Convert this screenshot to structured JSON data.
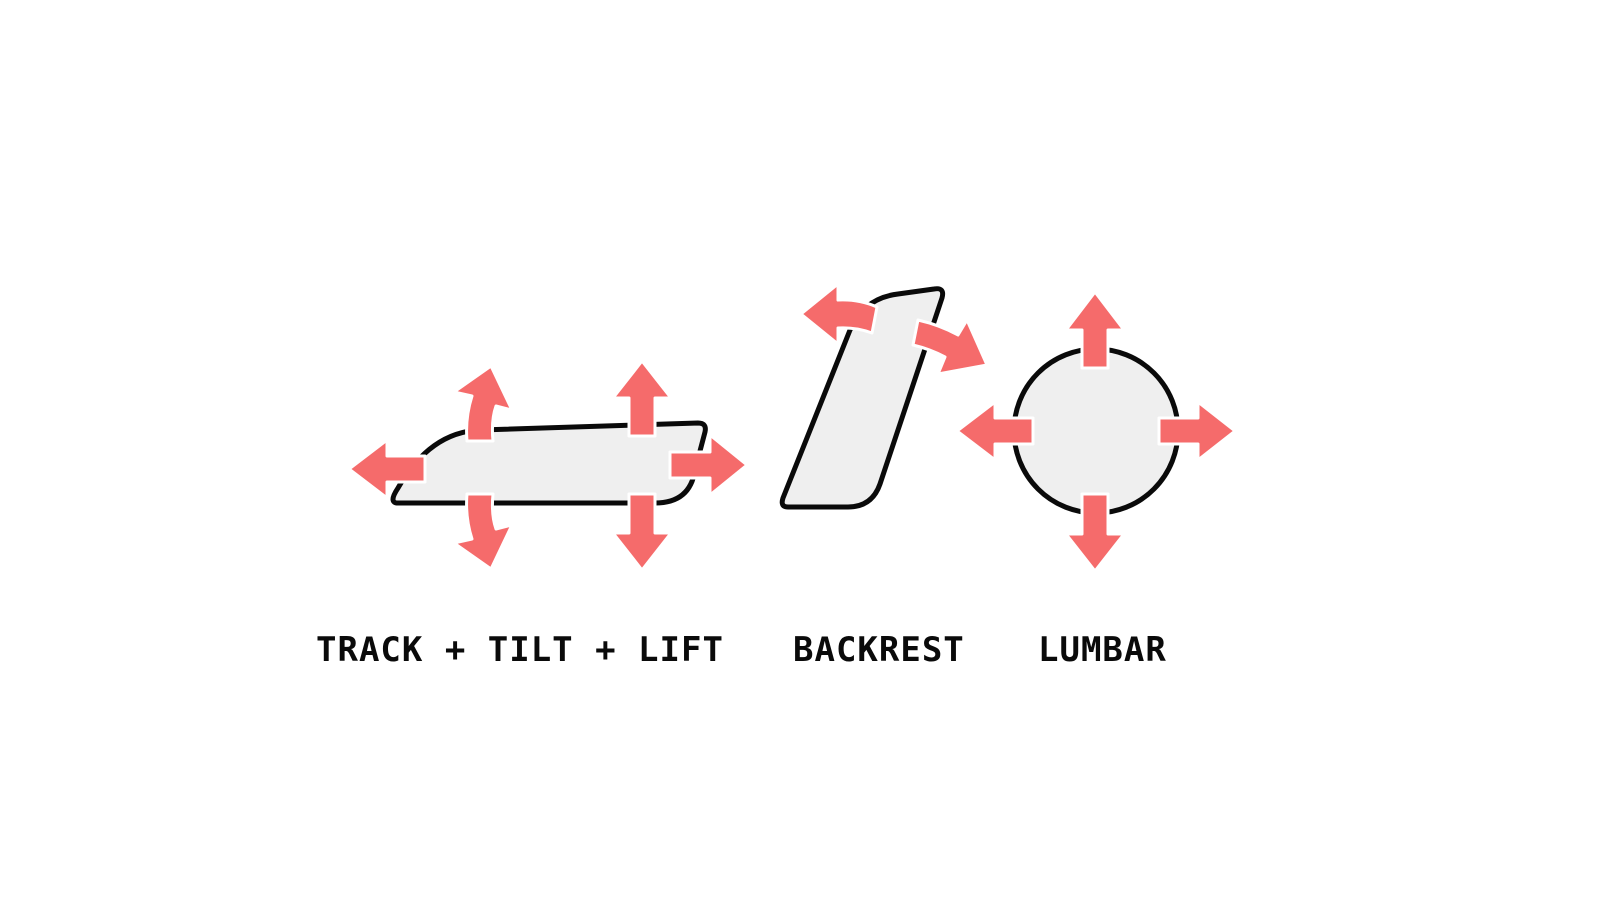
{
  "labels": {
    "seat": "TRACK + TILT + LIFT",
    "backrest": "BACKREST",
    "lumbar": "LUMBAR"
  },
  "colors": {
    "arrow": "#f56b6b",
    "shape_fill": "#efefef",
    "outline": "#0a0a0a",
    "background": "#ffffff"
  }
}
